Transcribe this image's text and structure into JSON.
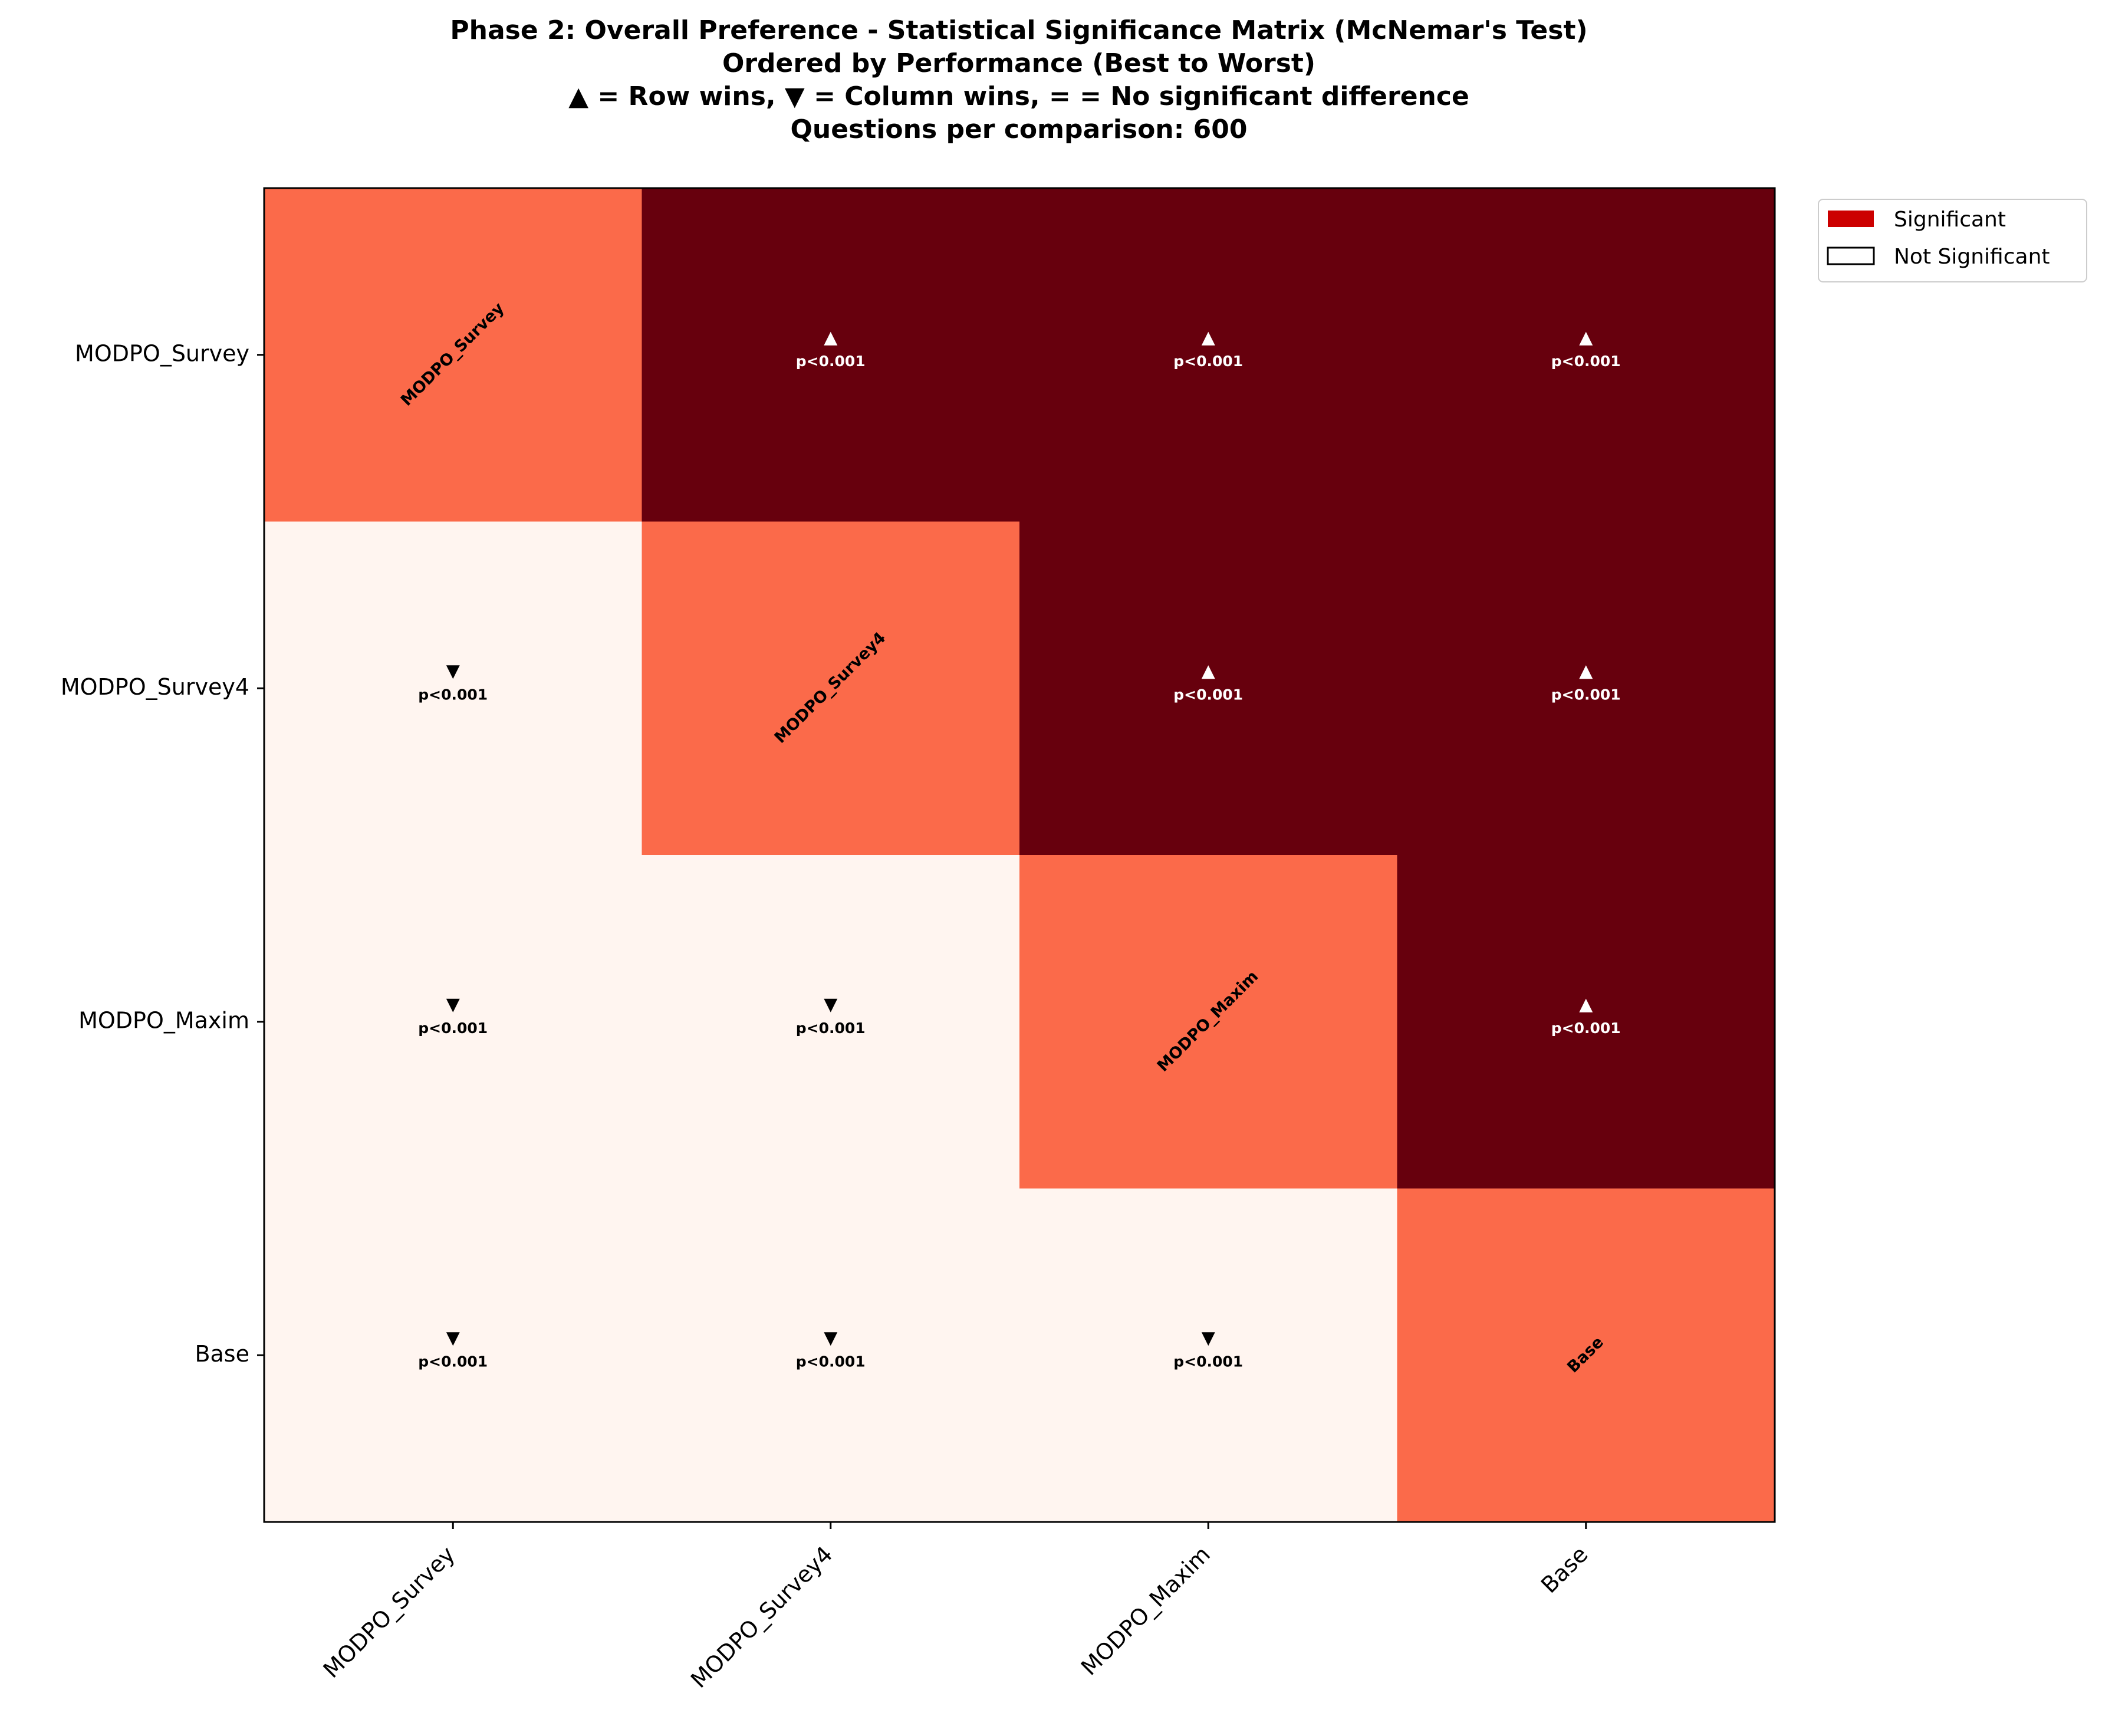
{
  "chart_data": {
    "type": "heatmap",
    "title_lines": [
      "Phase 2: Overall Preference - Statistical Significance Matrix (McNemar's Test)",
      "Ordered by Performance (Best to Worst)",
      "▲ = Row wins, ▼ = Column wins, = = No significant difference",
      "Questions per comparison: 600"
    ],
    "row_labels": [
      "MODPO_Survey",
      "MODPO_Survey4",
      "MODPO_Maxim",
      "Base"
    ],
    "col_labels": [
      "MODPO_Survey",
      "MODPO_Survey4",
      "MODPO_Maxim",
      "Base"
    ],
    "cells": [
      [
        {
          "kind": "diag",
          "label": "MODPO_Survey"
        },
        {
          "kind": "row_win",
          "symbol": "▲",
          "p": "p<0.001"
        },
        {
          "kind": "row_win",
          "symbol": "▲",
          "p": "p<0.001"
        },
        {
          "kind": "row_win",
          "symbol": "▲",
          "p": "p<0.001"
        }
      ],
      [
        {
          "kind": "col_win",
          "symbol": "▼",
          "p": "p<0.001"
        },
        {
          "kind": "diag",
          "label": "MODPO_Survey4"
        },
        {
          "kind": "row_win",
          "symbol": "▲",
          "p": "p<0.001"
        },
        {
          "kind": "row_win",
          "symbol": "▲",
          "p": "p<0.001"
        }
      ],
      [
        {
          "kind": "col_win",
          "symbol": "▼",
          "p": "p<0.001"
        },
        {
          "kind": "col_win",
          "symbol": "▼",
          "p": "p<0.001"
        },
        {
          "kind": "diag",
          "label": "MODPO_Maxim"
        },
        {
          "kind": "row_win",
          "symbol": "▲",
          "p": "p<0.001"
        }
      ],
      [
        {
          "kind": "col_win",
          "symbol": "▼",
          "p": "p<0.001"
        },
        {
          "kind": "col_win",
          "symbol": "▼",
          "p": "p<0.001"
        },
        {
          "kind": "col_win",
          "symbol": "▼",
          "p": "p<0.001"
        },
        {
          "kind": "diag",
          "label": "Base"
        }
      ]
    ],
    "legend": [
      {
        "label": "Significant",
        "color": "#cc0000",
        "style": "filled"
      },
      {
        "label": "Not Significant",
        "color": "#ffffff",
        "style": "outline"
      }
    ],
    "legend_position": "upper-right-outside",
    "colors": {
      "row_win": "#67000d",
      "col_win": "#fff5f0",
      "diag": "#fb6a4a",
      "row_win_text": "#ffffff",
      "col_win_text": "#000000"
    }
  }
}
